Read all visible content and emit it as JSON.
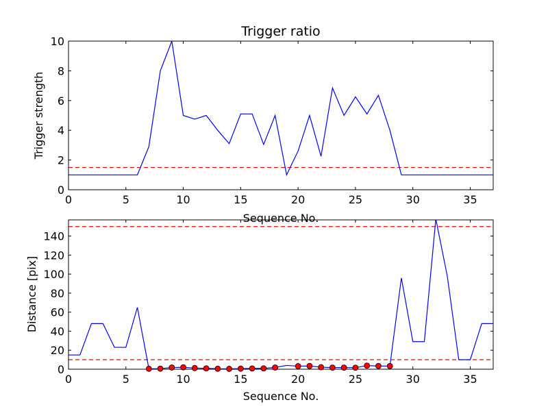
{
  "colors": {
    "series_line": "#0000ff",
    "threshold": "#ff0000",
    "marker_fill": "#ff0000",
    "marker_edge": "#000000",
    "axes": "#000000"
  },
  "chart_data": [
    {
      "type": "line",
      "title": "Trigger ratio",
      "xlabel": "Sequence No.",
      "ylabel": "Trigger strength",
      "xlim": [
        0,
        37
      ],
      "ylim": [
        0,
        10
      ],
      "xticks": [
        0,
        5,
        10,
        15,
        20,
        25,
        30,
        35
      ],
      "yticks": [
        0,
        2,
        4,
        6,
        8,
        10
      ],
      "grid": false,
      "series": [
        {
          "style": "solid",
          "x": [
            0,
            1,
            2,
            3,
            4,
            5,
            6,
            7,
            8,
            9,
            10,
            11,
            12,
            13,
            14,
            15,
            16,
            17,
            18,
            19,
            20,
            21,
            22,
            23,
            24,
            25,
            26,
            27,
            28,
            29,
            30,
            31,
            32,
            33,
            34,
            35,
            36,
            37
          ],
          "y": [
            1,
            1,
            1,
            1,
            1,
            1,
            1,
            2.9,
            8.0,
            10.0,
            5.0,
            4.75,
            5.0,
            4.0,
            3.1,
            5.1,
            5.1,
            3.05,
            5.0,
            1.0,
            2.6,
            5.0,
            2.25,
            6.85,
            5.0,
            6.25,
            5.1,
            6.35,
            4.0,
            1,
            1,
            1,
            1,
            1,
            1,
            1,
            1,
            1
          ]
        }
      ],
      "hlines": [
        {
          "y": 1.5,
          "style": "dashed"
        }
      ]
    },
    {
      "type": "line",
      "title": "",
      "xlabel": "Sequence No.",
      "ylabel": "Distance [pix]",
      "xlim": [
        0,
        37
      ],
      "ylim": [
        0,
        157
      ],
      "xticks": [
        0,
        5,
        10,
        15,
        20,
        25,
        30,
        35
      ],
      "yticks": [
        0,
        20,
        40,
        60,
        80,
        100,
        120,
        140
      ],
      "grid": false,
      "series": [
        {
          "style": "solid",
          "x": [
            0,
            1,
            2,
            3,
            4,
            5,
            6,
            7,
            8,
            9,
            10,
            11,
            12,
            13,
            14,
            15,
            16,
            17,
            18,
            19,
            20,
            21,
            22,
            23,
            24,
            25,
            26,
            27,
            28,
            29,
            30,
            31,
            32,
            33,
            34,
            35,
            36,
            37
          ],
          "y": [
            15,
            15,
            48,
            48,
            23,
            23,
            65,
            0.5,
            0.6,
            1.8,
            2.0,
            1.2,
            0.9,
            0.5,
            0.4,
            0.6,
            0.8,
            0.9,
            1.8,
            4.0,
            3.2,
            3.4,
            2.1,
            1.7,
            1.7,
            1.6,
            3.8,
            3.4,
            3.3,
            96,
            29,
            29,
            158,
            98,
            10,
            10,
            48,
            48
          ]
        },
        {
          "style": "markers",
          "x": [
            7,
            8,
            9,
            10,
            11,
            12,
            13,
            14,
            15,
            16,
            17,
            18,
            20,
            21,
            22,
            23,
            24,
            25,
            26,
            27,
            28
          ],
          "y": [
            0.5,
            0.6,
            1.8,
            2.0,
            1.2,
            0.9,
            0.5,
            0.4,
            0.6,
            0.8,
            0.9,
            1.8,
            3.2,
            3.4,
            2.1,
            1.7,
            1.7,
            1.6,
            3.8,
            3.4,
            3.3
          ]
        }
      ],
      "hlines": [
        {
          "y": 150,
          "style": "dashed"
        },
        {
          "y": 10,
          "style": "dashed"
        }
      ]
    }
  ]
}
